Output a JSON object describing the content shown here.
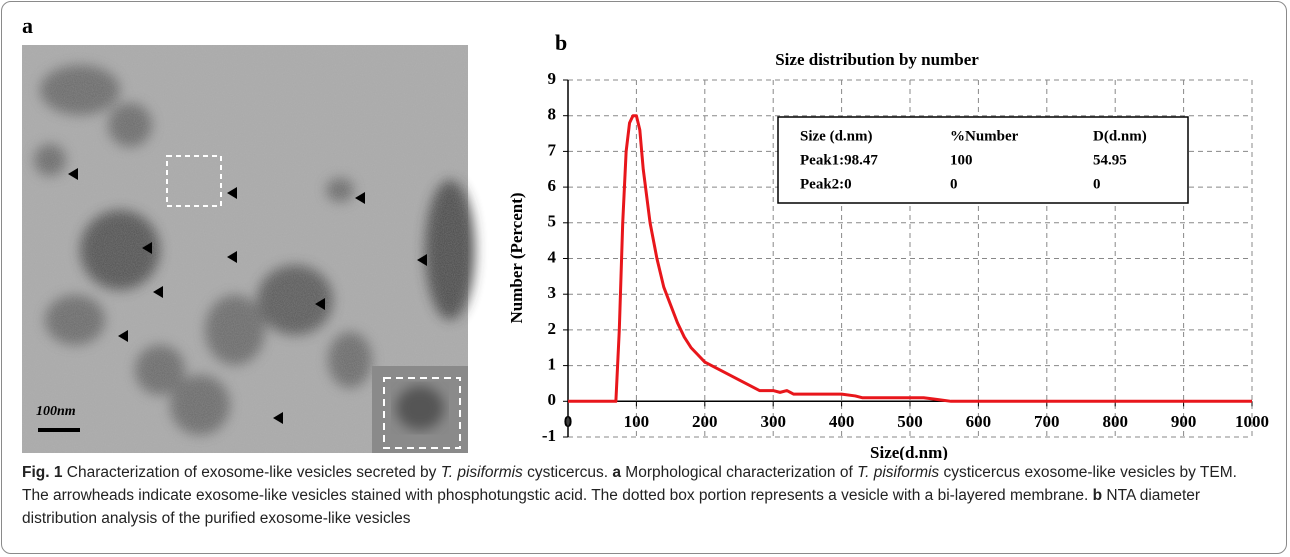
{
  "panel_labels": [
    "a",
    "b"
  ],
  "scale_bar_label": "100nm",
  "chart_data": {
    "type": "line",
    "title": "Size distribution by number",
    "x_label": "Size(d.nm)",
    "y_label": "Number (Percent)",
    "x": [
      0,
      70,
      75,
      80,
      85,
      90,
      95,
      100,
      105,
      110,
      120,
      130,
      140,
      150,
      160,
      170,
      180,
      190,
      200,
      220,
      240,
      260,
      280,
      300,
      310,
      320,
      330,
      400,
      420,
      430,
      500,
      520,
      540,
      560,
      1000
    ],
    "values": [
      0,
      0,
      2,
      5,
      7,
      7.8,
      8,
      8,
      7.6,
      6.5,
      5,
      4,
      3.2,
      2.7,
      2.2,
      1.8,
      1.5,
      1.3,
      1.1,
      0.9,
      0.7,
      0.5,
      0.3,
      0.3,
      0.25,
      0.3,
      0.2,
      0.2,
      0.15,
      0.1,
      0.1,
      0.1,
      0.05,
      0,
      0
    ],
    "color": "#e8161b",
    "xlim": [
      0,
      1000
    ],
    "xticks": [
      0,
      100,
      200,
      300,
      400,
      500,
      600,
      700,
      800,
      900,
      1000
    ],
    "ylim": [
      -1,
      9
    ],
    "yticks": [
      -1,
      0,
      1,
      2,
      3,
      4,
      5,
      6,
      7,
      8,
      9
    ],
    "grid": true,
    "inset_table": {
      "header": [
        "Size (d.nm)",
        "%Number",
        "D(d.nm)"
      ],
      "rows": [
        [
          "Peak1:98.47",
          "100",
          "54.95"
        ],
        [
          "Peak2:0",
          "0",
          "0"
        ]
      ]
    }
  },
  "caption": [
    "Fig. 1",
    "  Characterization of exosome-like vesicles secreted by ",
    "T. pisiformis",
    " cysticercus. ",
    "a",
    " Morphological characterization of ",
    "T. pisiformis",
    " cysticercus exosome-like vesicles by TEM. The arrowheads indicate exosome-like vesicles stained with phosphotungstic acid. The dotted box portion represents a vesicle with a bi-layered membrane. ",
    "b",
    " NTA diameter distribution analysis of the purified exosome-like vesicles"
  ]
}
